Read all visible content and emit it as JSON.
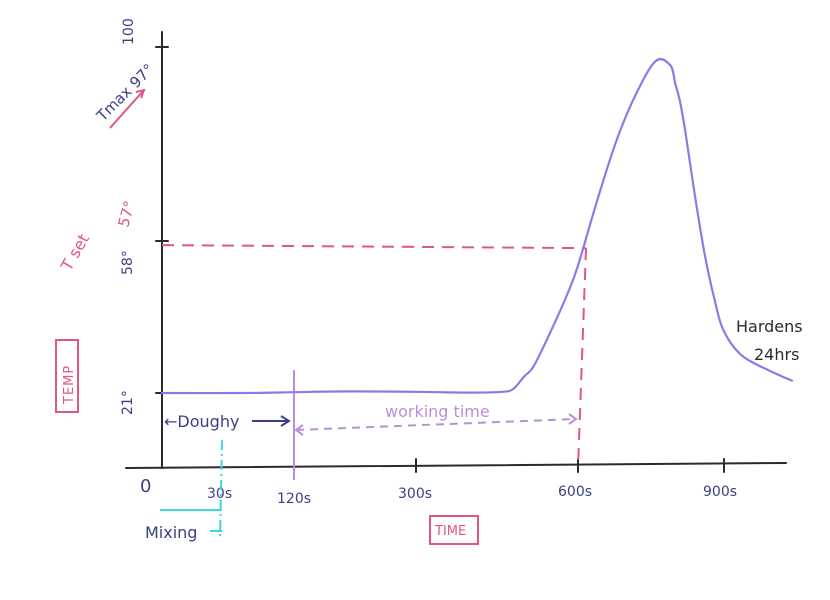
{
  "chart_data": {
    "type": "line",
    "title": "",
    "xlabel": "TIME",
    "ylabel": "TEMP",
    "x_ticks": [
      {
        "value": 30,
        "label": "30s"
      },
      {
        "value": 120,
        "label": "120s"
      },
      {
        "value": 300,
        "label": "300s"
      },
      {
        "value": 600,
        "label": "600s"
      },
      {
        "value": 900,
        "label": "900s"
      }
    ],
    "origin_label": "0",
    "y_ticks": [
      {
        "value": 21,
        "label": "21°"
      },
      {
        "value": 58,
        "label": "58°"
      },
      {
        "value": 100,
        "label": "100"
      }
    ],
    "series": [
      {
        "name": "",
        "color": "#8d7ae6",
        "x": [
          0,
          60,
          120,
          200,
          300,
          400,
          460,
          480,
          500,
          520,
          560,
          580,
          600,
          640,
          680,
          720,
          760,
          790,
          800,
          810,
          820,
          840,
          860,
          880,
          900,
          930,
          980,
          1010
        ],
        "y": [
          21,
          21,
          21.2,
          21.4,
          21.3,
          21.1,
          21.3,
          22,
          25,
          28,
          39,
          45,
          52,
          67,
          80,
          90,
          97,
          96,
          92,
          88,
          82,
          68,
          55,
          44,
          36,
          30,
          26,
          24
        ]
      }
    ],
    "reference_lines": [
      {
        "kind": "horizontal",
        "value": 57,
        "label": "T set 57°",
        "color": "#e0558a"
      },
      {
        "kind": "vertical",
        "value": 600,
        "color": "#e0558a"
      }
    ],
    "annotations": {
      "tmax": "Tmax 97°",
      "tset": "T set",
      "tset_value": "57°",
      "doughy": "←Doughy",
      "working_time": "working time",
      "mixing": "Mixing",
      "hardens_line1": "Hardens",
      "hardens_line2": "24hrs"
    },
    "grid": false,
    "legend": "none"
  },
  "colors": {
    "pink": "#e0558a",
    "purple": "#8d7ae6",
    "lavender": "#b98fd6",
    "navy": "#3b3f86",
    "cyan": "#3fd6e6"
  }
}
